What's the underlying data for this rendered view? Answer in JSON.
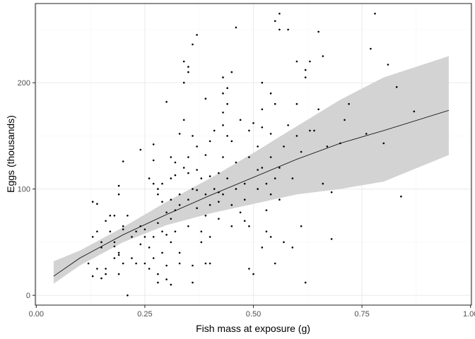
{
  "chart_data": {
    "type": "scatter",
    "xlabel": "Fish mass at exposure (g)",
    "ylabel": "Eggs (thousands)",
    "xlim": [
      -0.0022,
      1.0022
    ],
    "ylim": [
      -9.2,
      274.5
    ],
    "x_ticks": [
      0.0,
      0.25,
      0.5,
      0.75,
      1.0
    ],
    "x_tick_labels": [
      "0.00",
      "0.25",
      "0.50",
      "0.75",
      "1.00"
    ],
    "y_ticks": [
      0,
      100,
      200
    ],
    "y_tick_labels": [
      "0",
      "100",
      "200"
    ],
    "grid": true,
    "legend": "none",
    "colors": {
      "points": "#000000",
      "line": "#000000",
      "ribbon": "#d3d3d3",
      "panel_border": "#333333",
      "grid_major": "#ebebeb",
      "grid_minor": "#f5f5f5"
    },
    "fit": {
      "x": [
        0.04,
        0.1,
        0.2,
        0.3,
        0.4,
        0.5,
        0.6,
        0.7,
        0.8,
        0.95
      ],
      "y": [
        18,
        35,
        57,
        76,
        94,
        111,
        128,
        143,
        155,
        174
      ],
      "lower": [
        11,
        28,
        50,
        66,
        77,
        86,
        95,
        100,
        107,
        132
      ],
      "upper": [
        32,
        42,
        64,
        88,
        110,
        134,
        159,
        184,
        205,
        225
      ]
    },
    "points": [
      [
        0.12,
        30
      ],
      [
        0.13,
        18
      ],
      [
        0.13,
        55
      ],
      [
        0.13,
        88
      ],
      [
        0.14,
        25
      ],
      [
        0.14,
        60
      ],
      [
        0.14,
        86
      ],
      [
        0.15,
        45
      ],
      [
        0.15,
        16
      ],
      [
        0.15,
        50
      ],
      [
        0.16,
        20
      ],
      [
        0.16,
        70
      ],
      [
        0.16,
        25
      ],
      [
        0.17,
        60
      ],
      [
        0.17,
        75
      ],
      [
        0.18,
        35
      ],
      [
        0.18,
        50
      ],
      [
        0.18,
        75
      ],
      [
        0.18,
        46
      ],
      [
        0.19,
        38
      ],
      [
        0.19,
        20
      ],
      [
        0.19,
        103
      ],
      [
        0.19,
        95
      ],
      [
        0.19,
        40
      ],
      [
        0.2,
        30
      ],
      [
        0.2,
        65
      ],
      [
        0.2,
        62
      ],
      [
        0.2,
        126
      ],
      [
        0.21,
        0
      ],
      [
        0.21,
        75
      ],
      [
        0.22,
        35
      ],
      [
        0.22,
        55
      ],
      [
        0.23,
        60
      ],
      [
        0.23,
        30
      ],
      [
        0.24,
        137
      ],
      [
        0.24,
        65
      ],
      [
        0.24,
        48
      ],
      [
        0.25,
        62
      ],
      [
        0.25,
        55
      ],
      [
        0.25,
        30
      ],
      [
        0.26,
        25
      ],
      [
        0.26,
        45
      ],
      [
        0.26,
        110
      ],
      [
        0.27,
        105
      ],
      [
        0.27,
        127
      ],
      [
        0.27,
        142
      ],
      [
        0.27,
        55
      ],
      [
        0.27,
        35
      ],
      [
        0.28,
        95
      ],
      [
        0.28,
        100
      ],
      [
        0.28,
        20
      ],
      [
        0.28,
        12
      ],
      [
        0.28,
        68
      ],
      [
        0.29,
        88
      ],
      [
        0.29,
        60
      ],
      [
        0.29,
        40
      ],
      [
        0.29,
        105
      ],
      [
        0.3,
        78
      ],
      [
        0.3,
        57
      ],
      [
        0.3,
        28
      ],
      [
        0.3,
        15
      ],
      [
        0.3,
        182
      ],
      [
        0.31,
        130
      ],
      [
        0.31,
        110
      ],
      [
        0.31,
        90
      ],
      [
        0.31,
        72
      ],
      [
        0.31,
        50
      ],
      [
        0.31,
        10
      ],
      [
        0.32,
        125
      ],
      [
        0.32,
        113
      ],
      [
        0.32,
        80
      ],
      [
        0.32,
        60
      ],
      [
        0.33,
        152
      ],
      [
        0.33,
        95
      ],
      [
        0.33,
        85
      ],
      [
        0.33,
        40
      ],
      [
        0.33,
        30
      ],
      [
        0.34,
        120
      ],
      [
        0.34,
        165
      ],
      [
        0.34,
        200
      ],
      [
        0.34,
        220
      ],
      [
        0.35,
        210
      ],
      [
        0.35,
        215
      ],
      [
        0.35,
        130
      ],
      [
        0.35,
        115
      ],
      [
        0.35,
        90
      ],
      [
        0.35,
        65
      ],
      [
        0.36,
        150
      ],
      [
        0.36,
        100
      ],
      [
        0.36,
        28
      ],
      [
        0.36,
        12
      ],
      [
        0.36,
        236
      ],
      [
        0.37,
        140
      ],
      [
        0.37,
        118
      ],
      [
        0.37,
        99
      ],
      [
        0.37,
        82
      ],
      [
        0.37,
        245
      ],
      [
        0.38,
        110
      ],
      [
        0.38,
        60
      ],
      [
        0.38,
        50
      ],
      [
        0.39,
        185
      ],
      [
        0.39,
        132
      ],
      [
        0.39,
        95
      ],
      [
        0.39,
        75
      ],
      [
        0.39,
        30
      ],
      [
        0.4,
        145
      ],
      [
        0.4,
        112
      ],
      [
        0.4,
        85
      ],
      [
        0.4,
        55
      ],
      [
        0.4,
        30
      ],
      [
        0.41,
        155
      ],
      [
        0.41,
        100
      ],
      [
        0.42,
        115
      ],
      [
        0.42,
        97
      ],
      [
        0.42,
        88
      ],
      [
        0.42,
        72
      ],
      [
        0.43,
        205
      ],
      [
        0.43,
        190
      ],
      [
        0.43,
        172
      ],
      [
        0.43,
        160
      ],
      [
        0.43,
        130
      ],
      [
        0.43,
        95
      ],
      [
        0.44,
        195
      ],
      [
        0.44,
        180
      ],
      [
        0.44,
        150
      ],
      [
        0.44,
        110
      ],
      [
        0.45,
        210
      ],
      [
        0.45,
        145
      ],
      [
        0.45,
        85
      ],
      [
        0.45,
        65
      ],
      [
        0.46,
        252
      ],
      [
        0.46,
        125
      ],
      [
        0.46,
        100
      ],
      [
        0.47,
        165
      ],
      [
        0.47,
        78
      ],
      [
        0.48,
        105
      ],
      [
        0.48,
        90
      ],
      [
        0.48,
        70
      ],
      [
        0.49,
        155
      ],
      [
        0.49,
        130
      ],
      [
        0.49,
        65
      ],
      [
        0.49,
        25
      ],
      [
        0.5,
        20
      ],
      [
        0.5,
        162
      ],
      [
        0.51,
        140
      ],
      [
        0.51,
        118
      ],
      [
        0.51,
        100
      ],
      [
        0.52,
        200
      ],
      [
        0.52,
        175
      ],
      [
        0.52,
        158
      ],
      [
        0.52,
        120
      ],
      [
        0.52,
        45
      ],
      [
        0.53,
        105
      ],
      [
        0.53,
        80
      ],
      [
        0.53,
        60
      ],
      [
        0.54,
        190
      ],
      [
        0.54,
        152
      ],
      [
        0.54,
        130
      ],
      [
        0.54,
        95
      ],
      [
        0.54,
        55
      ],
      [
        0.55,
        258
      ],
      [
        0.55,
        180
      ],
      [
        0.55,
        110
      ],
      [
        0.55,
        30
      ],
      [
        0.56,
        265
      ],
      [
        0.56,
        250
      ],
      [
        0.56,
        120
      ],
      [
        0.56,
        90
      ],
      [
        0.57,
        140
      ],
      [
        0.57,
        50
      ],
      [
        0.58,
        250
      ],
      [
        0.58,
        160
      ],
      [
        0.59,
        45
      ],
      [
        0.59,
        110
      ],
      [
        0.6,
        220
      ],
      [
        0.6,
        180
      ],
      [
        0.6,
        150
      ],
      [
        0.61,
        135
      ],
      [
        0.61,
        65
      ],
      [
        0.62,
        212
      ],
      [
        0.62,
        205
      ],
      [
        0.62,
        12
      ],
      [
        0.63,
        220
      ],
      [
        0.63,
        155
      ],
      [
        0.64,
        155
      ],
      [
        0.65,
        248
      ],
      [
        0.65,
        175
      ],
      [
        0.66,
        225
      ],
      [
        0.66,
        105
      ],
      [
        0.67,
        140
      ],
      [
        0.68,
        97
      ],
      [
        0.68,
        53
      ],
      [
        0.7,
        143
      ],
      [
        0.71,
        165
      ],
      [
        0.72,
        180
      ],
      [
        0.76,
        152
      ],
      [
        0.77,
        232
      ],
      [
        0.78,
        265
      ],
      [
        0.8,
        143
      ],
      [
        0.81,
        217
      ],
      [
        0.83,
        196
      ],
      [
        0.84,
        93
      ],
      [
        0.87,
        173
      ]
    ]
  }
}
